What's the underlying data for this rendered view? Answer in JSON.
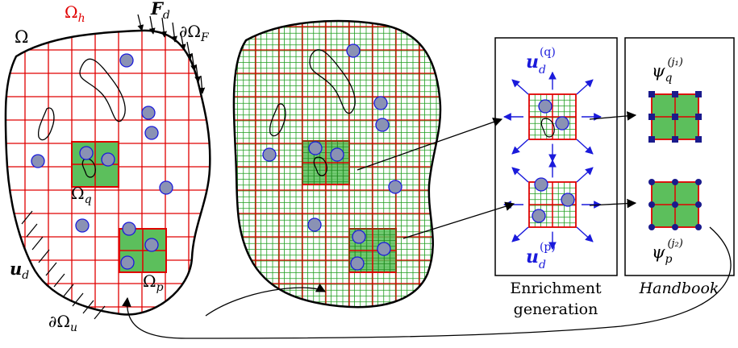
{
  "labels": {
    "omega": "Ω",
    "omega_h_base": "Ω",
    "omega_h_sub": "h",
    "force_base": "F",
    "force_sub": "d",
    "boundary_f_base": "∂Ω",
    "boundary_f_sub": "F",
    "omega_q_base": "Ω",
    "omega_q_sub": "q",
    "omega_p_base": "Ω",
    "omega_p_sub": "p",
    "u_d_base": "u",
    "u_d_sub": "d",
    "boundary_u_base": "∂Ω",
    "boundary_u_sub": "u",
    "enr_q_base": "u",
    "enr_q_sub": "d",
    "enr_q_sup": "(q)",
    "enr_p_base": "u",
    "enr_p_sub": "d",
    "enr_p_sup": "(p)",
    "psi_q_base": "ψ",
    "psi_q_sub": "q",
    "psi_q_sup": "(j₁)",
    "psi_p_base": "ψ",
    "psi_p_sub": "p",
    "psi_p_sup": "(j₂)"
  },
  "captions": {
    "enrichment_line1": "Enrichment",
    "enrichment_line2": "generation",
    "handbook": "Handbook"
  },
  "colors": {
    "coarse_grid": "#e00000",
    "fine_grid": "#1e9e1e",
    "patch_fill": "#5cbf5c",
    "inclusion_fill": "#8a92b4",
    "inclusion_stroke": "#1a1adb",
    "arrow_blue": "#1a1adb",
    "node_blue": "#1a1a8c"
  }
}
